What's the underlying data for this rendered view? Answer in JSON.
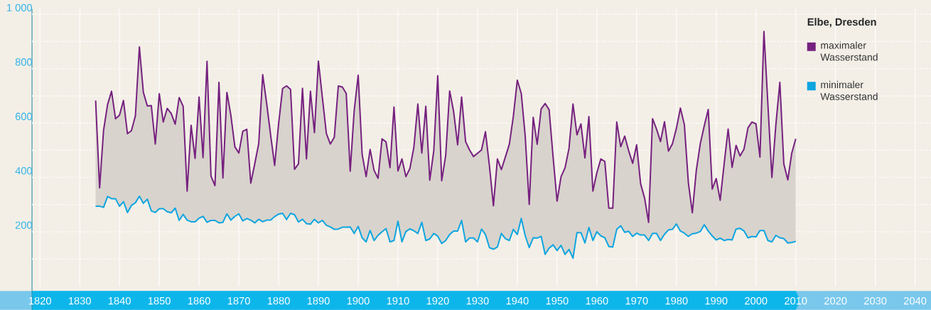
{
  "chart_data": {
    "type": "line",
    "legend_title": "Elbe, Dresden",
    "x": [
      1834,
      1835,
      1836,
      1837,
      1838,
      1839,
      1840,
      1841,
      1842,
      1843,
      1844,
      1845,
      1846,
      1847,
      1848,
      1849,
      1850,
      1851,
      1852,
      1853,
      1854,
      1855,
      1856,
      1857,
      1858,
      1859,
      1860,
      1861,
      1862,
      1863,
      1864,
      1865,
      1866,
      1867,
      1868,
      1869,
      1870,
      1871,
      1872,
      1873,
      1874,
      1875,
      1876,
      1877,
      1878,
      1879,
      1880,
      1881,
      1882,
      1883,
      1884,
      1885,
      1886,
      1887,
      1888,
      1889,
      1890,
      1891,
      1892,
      1893,
      1894,
      1895,
      1896,
      1897,
      1898,
      1899,
      1900,
      1901,
      1902,
      1903,
      1904,
      1905,
      1906,
      1907,
      1908,
      1909,
      1910,
      1911,
      1912,
      1913,
      1914,
      1915,
      1916,
      1917,
      1918,
      1919,
      1920,
      1921,
      1922,
      1923,
      1924,
      1925,
      1926,
      1927,
      1928,
      1929,
      1930,
      1931,
      1932,
      1933,
      1934,
      1935,
      1936,
      1937,
      1938,
      1939,
      1940,
      1941,
      1942,
      1943,
      1944,
      1945,
      1946,
      1947,
      1948,
      1949,
      1950,
      1951,
      1952,
      1953,
      1954,
      1955,
      1956,
      1957,
      1958,
      1959,
      1960,
      1961,
      1962,
      1963,
      1964,
      1965,
      1966,
      1967,
      1968,
      1969,
      1970,
      1971,
      1972,
      1973,
      1974,
      1975,
      1976,
      1977,
      1978,
      1979,
      1980,
      1981,
      1982,
      1983,
      1984,
      1985,
      1986,
      1987,
      1988,
      1989,
      1990,
      1991,
      1992,
      1993,
      1994,
      1995,
      1996,
      1997,
      1998,
      1999,
      2000,
      2001,
      2002,
      2003,
      2004,
      2005,
      2006,
      2007,
      2008,
      2009,
      2010
    ],
    "series": [
      {
        "name": "maximaler Wasserstand",
        "color": "#76217f",
        "lower": [
          294,
          294,
          290,
          330,
          322,
          322,
          294,
          311,
          271,
          297,
          307,
          331,
          305,
          320,
          277,
          271,
          285,
          285,
          274,
          270,
          287,
          242,
          264,
          243,
          237,
          237,
          250,
          257,
          235,
          242,
          242,
          233,
          235,
          266,
          243,
          257,
          266,
          240,
          249,
          243,
          233,
          246,
          237,
          243,
          243,
          256,
          265,
          268,
          245,
          268,
          263,
          236,
          246,
          230,
          228,
          246,
          233,
          242,
          224,
          218,
          209,
          210,
          217,
          217,
          218,
          194,
          220,
          178,
          163,
          205,
          168,
          187,
          200,
          212,
          163,
          168,
          239,
          163,
          201,
          211,
          204,
          194,
          235,
          168,
          174,
          194,
          184,
          157,
          168,
          190,
          203,
          203,
          242,
          163,
          177,
          177,
          163,
          210,
          190,
          142,
          136,
          144,
          194,
          175,
          168,
          209,
          190,
          249,
          185,
          142,
          178,
          177,
          183,
          117,
          140,
          152,
          131,
          150,
          117,
          135,
          103,
          197,
          197,
          159,
          216,
          168,
          200,
          185,
          178,
          146,
          144,
          209,
          222,
          198,
          202,
          183,
          195,
          188,
          188,
          168,
          194,
          194,
          168,
          191,
          207,
          209,
          229,
          203,
          195,
          183,
          193,
          195,
          201,
          226,
          203,
          185,
          170,
          177,
          168,
          172,
          170,
          210,
          213,
          203,
          178,
          183,
          181,
          205,
          205,
          168,
          163,
          187,
          178,
          175,
          159,
          161,
          165
        ],
        "upper": [
          683,
          362,
          574,
          668,
          717,
          616,
          629,
          683,
          561,
          572,
          627,
          880,
          713,
          663,
          664,
          523,
          708,
          604,
          654,
          635,
          596,
          694,
          662,
          350,
          592,
          470,
          696,
          473,
          827,
          405,
          370,
          750,
          398,
          713,
          628,
          513,
          490,
          570,
          577,
          379,
          450,
          525,
          778,
          672,
          555,
          444,
          598,
          727,
          737,
          724,
          430,
          450,
          728,
          468,
          717,
          565,
          828,
          694,
          562,
          523,
          548,
          736,
          733,
          709,
          423,
          646,
          776,
          485,
          403,
          503,
          426,
          397,
          542,
          531,
          436,
          659,
          424,
          468,
          403,
          433,
          511,
          670,
          490,
          662,
          390,
          497,
          774,
          388,
          481,
          718,
          642,
          520,
          696,
          532,
          501,
          477,
          489,
          501,
          568,
          442,
          296,
          468,
          429,
          475,
          522,
          624,
          758,
          709,
          550,
          301,
          621,
          522,
          652,
          672,
          649,
          475,
          313,
          403,
          435,
          507,
          670,
          557,
          597,
          472,
          624,
          350,
          417,
          468,
          459,
          287,
          287,
          604,
          513,
          552,
          498,
          452,
          520,
          377,
          324,
          235,
          616,
          578,
          532,
          605,
          497,
          524,
          581,
          655,
          594,
          381,
          270,
          426,
          524,
          590,
          650,
          357,
          396,
          316,
          450,
          578,
          437,
          518,
          479,
          505,
          583,
          604,
          597,
          475,
          937,
          668,
          400,
          594,
          750,
          450,
          391,
          490,
          542
        ],
        "values": [
          683,
          362,
          574,
          668,
          717,
          616,
          629,
          683,
          561,
          572,
          627,
          880,
          713,
          663,
          664,
          523,
          708,
          604,
          654,
          635,
          596,
          694,
          662,
          350,
          592,
          470,
          696,
          473,
          827,
          405,
          370,
          750,
          398,
          713,
          628,
          513,
          490,
          570,
          577,
          379,
          450,
          525,
          778,
          672,
          555,
          444,
          598,
          727,
          737,
          724,
          430,
          450,
          728,
          468,
          717,
          565,
          828,
          694,
          562,
          523,
          548,
          736,
          733,
          709,
          423,
          646,
          776,
          485,
          403,
          503,
          426,
          397,
          542,
          531,
          436,
          659,
          424,
          468,
          403,
          433,
          511,
          670,
          490,
          662,
          390,
          497,
          774,
          388,
          481,
          718,
          642,
          520,
          696,
          532,
          501,
          477,
          489,
          501,
          568,
          442,
          296,
          468,
          429,
          475,
          522,
          624,
          758,
          709,
          550,
          301,
          621,
          522,
          652,
          672,
          649,
          475,
          313,
          403,
          435,
          507,
          670,
          557,
          597,
          472,
          624,
          350,
          417,
          468,
          459,
          287,
          287,
          604,
          513,
          552,
          498,
          452,
          520,
          377,
          324,
          235,
          616,
          578,
          532,
          605,
          497,
          524,
          581,
          655,
          594,
          381,
          270,
          426,
          524,
          590,
          650,
          357,
          396,
          316,
          450,
          578,
          437,
          518,
          479,
          505,
          583,
          604,
          597,
          475,
          937,
          668,
          400,
          594,
          750,
          450,
          391,
          490,
          542
        ]
      },
      {
        "name": "minimaler Wasserstand",
        "color": "#0ea5e0",
        "values": [
          294,
          294,
          290,
          330,
          322,
          322,
          294,
          311,
          271,
          297,
          307,
          331,
          305,
          320,
          277,
          271,
          285,
          285,
          274,
          270,
          287,
          242,
          264,
          243,
          237,
          237,
          250,
          257,
          235,
          242,
          242,
          233,
          235,
          266,
          243,
          257,
          266,
          240,
          249,
          243,
          233,
          246,
          237,
          243,
          243,
          256,
          265,
          268,
          245,
          268,
          263,
          236,
          246,
          230,
          228,
          246,
          233,
          242,
          224,
          218,
          209,
          210,
          217,
          217,
          218,
          194,
          220,
          178,
          163,
          205,
          168,
          187,
          200,
          212,
          163,
          168,
          239,
          163,
          201,
          211,
          204,
          194,
          235,
          168,
          174,
          194,
          184,
          157,
          168,
          190,
          203,
          203,
          242,
          163,
          177,
          177,
          163,
          210,
          190,
          142,
          136,
          144,
          194,
          175,
          168,
          209,
          190,
          249,
          185,
          142,
          178,
          177,
          183,
          117,
          140,
          152,
          131,
          150,
          117,
          135,
          103,
          197,
          197,
          159,
          216,
          168,
          200,
          185,
          178,
          146,
          144,
          209,
          222,
          198,
          202,
          183,
          195,
          188,
          188,
          168,
          194,
          194,
          168,
          191,
          207,
          209,
          229,
          203,
          195,
          183,
          193,
          195,
          201,
          226,
          203,
          185,
          170,
          177,
          168,
          172,
          170,
          210,
          213,
          203,
          178,
          183,
          181,
          205,
          205,
          168,
          163,
          187,
          178,
          175,
          159,
          161,
          165
        ]
      }
    ],
    "xlim": [
      1818,
      2044
    ],
    "ylim": [
      0,
      1020
    ],
    "xticks": [
      1820,
      1830,
      1840,
      1850,
      1860,
      1870,
      1880,
      1890,
      1900,
      1910,
      1920,
      1930,
      1940,
      1950,
      1960,
      1970,
      1980,
      1990,
      2000,
      2010,
      2020,
      2030,
      2040
    ],
    "yticks": [
      {
        "value": 100,
        "label": null
      },
      200,
      {
        "value": 300,
        "label": null
      },
      400,
      {
        "value": 500,
        "label": null
      },
      600,
      {
        "value": 700,
        "label": null
      },
      800,
      {
        "value": 900,
        "label": null
      },
      {
        "value": 1000,
        "label": "1 000"
      }
    ],
    "grid": true,
    "legend": "top right"
  }
}
